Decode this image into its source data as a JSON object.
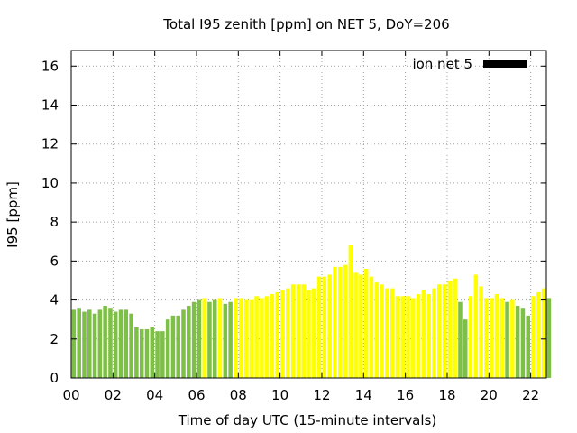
{
  "chart_data": {
    "type": "bar",
    "title": "Total I95 zenith [ppm] on NET 5, DoY=206",
    "xlabel": "Time of day UTC (15-minute intervals)",
    "ylabel": "I95 [ppm]",
    "xlim": [
      0,
      22.75
    ],
    "ylim": [
      0,
      16.8
    ],
    "x_ticks": [
      "00",
      "02",
      "04",
      "06",
      "08",
      "10",
      "12",
      "14",
      "16",
      "18",
      "20",
      "22"
    ],
    "x_tick_values": [
      0,
      2,
      4,
      6,
      8,
      10,
      12,
      14,
      16,
      18,
      20,
      22
    ],
    "y_ticks": [
      "0",
      "2",
      "4",
      "6",
      "8",
      "10",
      "12",
      "14",
      "16"
    ],
    "y_tick_values": [
      0,
      2,
      4,
      6,
      8,
      10,
      12,
      14,
      16
    ],
    "bar_interval_hours": 0.25,
    "grid": true,
    "legend": {
      "label": "ion net 5",
      "position": "top-right",
      "color": "#000000"
    },
    "colors": {
      "green": "#7ebf48",
      "yellow": "#ffff00"
    },
    "series": [
      {
        "values": [
          3.5,
          3.6,
          3.4,
          3.5,
          3.3,
          3.5,
          3.7,
          3.6,
          3.4,
          3.5,
          3.5,
          3.3,
          2.6,
          2.5,
          2.5,
          2.6,
          2.4,
          2.4,
          3.0,
          3.2,
          3.2,
          3.5,
          3.7,
          3.9,
          4.0,
          4.1,
          3.9,
          4.0,
          4.1,
          3.8,
          3.9,
          4.1,
          4.1,
          4.0,
          4.0,
          4.2,
          4.1,
          4.2,
          4.3,
          4.4,
          4.5,
          4.6,
          4.8,
          4.8,
          4.8,
          4.5,
          4.6,
          5.2,
          5.2,
          5.3,
          5.7,
          5.7,
          5.8,
          6.8,
          5.4,
          5.3,
          5.6,
          5.2,
          4.9,
          4.8,
          4.6,
          4.6,
          4.2,
          4.2,
          4.2,
          4.1,
          4.3,
          4.5,
          4.3,
          4.6,
          4.8,
          4.8,
          5.0,
          5.1,
          3.9,
          3.0,
          4.2,
          5.3,
          4.7,
          4.1,
          4.1,
          4.3,
          4.1,
          3.9,
          4.0,
          3.7,
          3.6,
          3.2,
          4.2,
          4.4,
          4.6,
          4.1
        ],
        "colors": [
          "green",
          "green",
          "green",
          "green",
          "green",
          "green",
          "green",
          "green",
          "green",
          "green",
          "green",
          "green",
          "green",
          "green",
          "green",
          "green",
          "green",
          "green",
          "green",
          "green",
          "green",
          "green",
          "green",
          "green",
          "green",
          "yellow",
          "green",
          "green",
          "yellow",
          "green",
          "green",
          "yellow",
          "yellow",
          "yellow",
          "yellow",
          "yellow",
          "yellow",
          "yellow",
          "yellow",
          "yellow",
          "yellow",
          "yellow",
          "yellow",
          "yellow",
          "yellow",
          "yellow",
          "yellow",
          "yellow",
          "yellow",
          "yellow",
          "yellow",
          "yellow",
          "yellow",
          "yellow",
          "yellow",
          "yellow",
          "yellow",
          "yellow",
          "yellow",
          "yellow",
          "yellow",
          "yellow",
          "yellow",
          "yellow",
          "yellow",
          "yellow",
          "yellow",
          "yellow",
          "yellow",
          "yellow",
          "yellow",
          "yellow",
          "yellow",
          "yellow",
          "green",
          "green",
          "yellow",
          "yellow",
          "yellow",
          "yellow",
          "yellow",
          "yellow",
          "yellow",
          "green",
          "yellow",
          "green",
          "green",
          "green",
          "yellow",
          "yellow",
          "yellow",
          "green"
        ]
      }
    ]
  }
}
